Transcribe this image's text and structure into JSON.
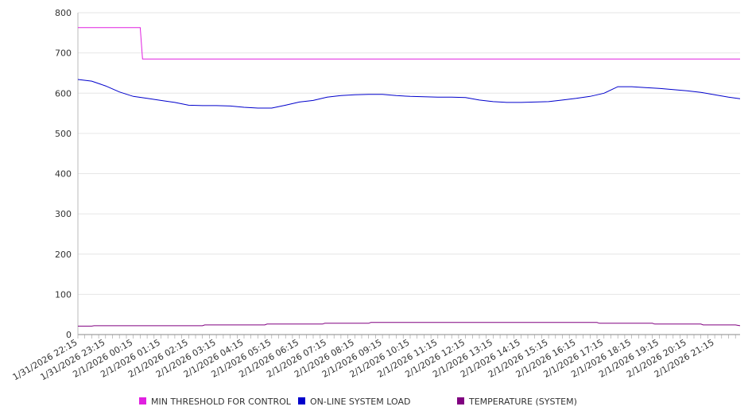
{
  "chart_data": {
    "type": "line",
    "title": "",
    "xlabel": "",
    "ylabel": "",
    "ylim": [
      0,
      800
    ],
    "yticks": [
      0,
      100,
      200,
      300,
      400,
      500,
      600,
      700,
      800
    ],
    "grid": true,
    "legend_position": "bottom",
    "x_tick_labels": [
      "1/31/2026 22:15",
      "1/31/2026 23:15",
      "2/1/2026 00:15",
      "2/1/2026 01:15",
      "2/1/2026 02:15",
      "2/1/2026 03:15",
      "2/1/2026 04:15",
      "2/1/2026 05:15",
      "2/1/2026 06:15",
      "2/1/2026 07:15",
      "2/1/2026 08:15",
      "2/1/2026 09:15",
      "2/1/2026 10:15",
      "2/1/2026 11:15",
      "2/1/2026 12:15",
      "2/1/2026 13:15",
      "2/1/2026 14:15",
      "2/1/2026 15:15",
      "2/1/2026 16:15",
      "2/1/2026 17:15",
      "2/1/2026 18:15",
      "2/1/2026 19:15",
      "2/1/2026 20:15",
      "2/1/2026 21:15"
    ],
    "series": [
      {
        "name": "MIN THRESHOLD FOR CONTROL",
        "color": "#e020e0",
        "points": [
          [
            "1/31/2026 22:15",
            763
          ],
          [
            "2/1/2026 00:30",
            763
          ],
          [
            "2/1/2026 00:35",
            685
          ],
          [
            "2/1/2026 22:10",
            685
          ]
        ]
      },
      {
        "name": "ON-LINE SYSTEM LOAD",
        "color": "#0000cc",
        "points": [
          [
            "1/31/2026 22:15",
            634
          ],
          [
            "1/31/2026 22:45",
            630
          ],
          [
            "1/31/2026 23:15",
            618
          ],
          [
            "1/31/2026 23:45",
            603
          ],
          [
            "2/1/2026 00:15",
            592
          ],
          [
            "2/1/2026 00:45",
            587
          ],
          [
            "2/1/2026 01:15",
            582
          ],
          [
            "2/1/2026 01:45",
            577
          ],
          [
            "2/1/2026 02:15",
            570
          ],
          [
            "2/1/2026 02:45",
            569
          ],
          [
            "2/1/2026 03:15",
            569
          ],
          [
            "2/1/2026 03:45",
            568
          ],
          [
            "2/1/2026 04:15",
            565
          ],
          [
            "2/1/2026 04:45",
            563
          ],
          [
            "2/1/2026 05:15",
            563
          ],
          [
            "2/1/2026 05:45",
            570
          ],
          [
            "2/1/2026 06:15",
            578
          ],
          [
            "2/1/2026 06:45",
            582
          ],
          [
            "2/1/2026 07:15",
            590
          ],
          [
            "2/1/2026 07:45",
            594
          ],
          [
            "2/1/2026 08:15",
            596
          ],
          [
            "2/1/2026 08:45",
            597
          ],
          [
            "2/1/2026 09:15",
            597
          ],
          [
            "2/1/2026 09:45",
            594
          ],
          [
            "2/1/2026 10:15",
            592
          ],
          [
            "2/1/2026 10:45",
            591
          ],
          [
            "2/1/2026 11:15",
            590
          ],
          [
            "2/1/2026 11:45",
            590
          ],
          [
            "2/1/2026 12:15",
            589
          ],
          [
            "2/1/2026 12:45",
            583
          ],
          [
            "2/1/2026 13:15",
            579
          ],
          [
            "2/1/2026 13:45",
            577
          ],
          [
            "2/1/2026 14:15",
            577
          ],
          [
            "2/1/2026 14:45",
            578
          ],
          [
            "2/1/2026 15:15",
            579
          ],
          [
            "2/1/2026 15:45",
            583
          ],
          [
            "2/1/2026 16:15",
            587
          ],
          [
            "2/1/2026 16:45",
            592
          ],
          [
            "2/1/2026 17:15",
            600
          ],
          [
            "2/1/2026 17:45",
            616
          ],
          [
            "2/1/2026 18:15",
            616
          ],
          [
            "2/1/2026 18:45",
            614
          ],
          [
            "2/1/2026 19:15",
            612
          ],
          [
            "2/1/2026 19:45",
            609
          ],
          [
            "2/1/2026 20:15",
            606
          ],
          [
            "2/1/2026 20:45",
            602
          ],
          [
            "2/1/2026 21:15",
            596
          ],
          [
            "2/1/2026 21:45",
            590
          ],
          [
            "2/1/2026 22:10",
            586
          ]
        ]
      },
      {
        "name": "TEMPERATURE (SYSTEM)",
        "color": "#800080",
        "points": [
          [
            "1/31/2026 22:15",
            21
          ],
          [
            "1/31/2026 22:45",
            21
          ],
          [
            "1/31/2026 22:50",
            22
          ],
          [
            "2/1/2026 02:45",
            22
          ],
          [
            "2/1/2026 02:50",
            24
          ],
          [
            "2/1/2026 05:00",
            24
          ],
          [
            "2/1/2026 05:05",
            26
          ],
          [
            "2/1/2026 07:05",
            26
          ],
          [
            "2/1/2026 07:10",
            28
          ],
          [
            "2/1/2026 08:45",
            28
          ],
          [
            "2/1/2026 08:50",
            30
          ],
          [
            "2/1/2026 17:00",
            30
          ],
          [
            "2/1/2026 17:05",
            28
          ],
          [
            "2/1/2026 19:00",
            28
          ],
          [
            "2/1/2026 19:05",
            26
          ],
          [
            "2/1/2026 20:45",
            26
          ],
          [
            "2/1/2026 20:50",
            24
          ],
          [
            "2/1/2026 22:00",
            24
          ],
          [
            "2/1/2026 22:10",
            22
          ]
        ]
      }
    ]
  }
}
